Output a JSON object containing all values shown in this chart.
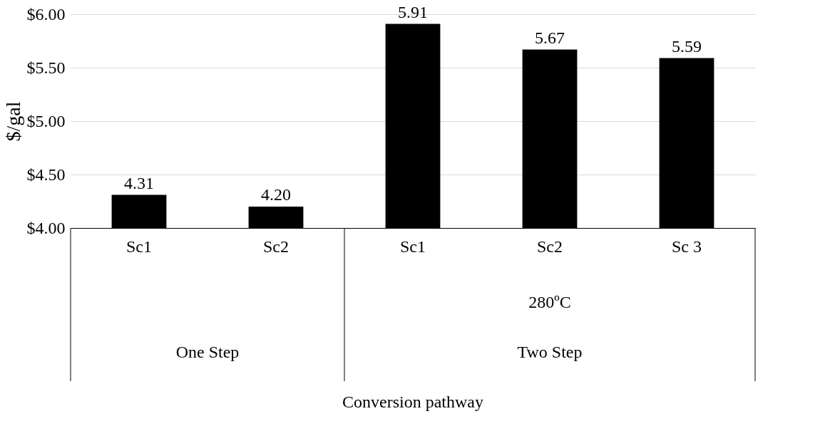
{
  "chart_data": {
    "type": "bar",
    "ylabel": "$/gal",
    "categories": [
      "Sc1",
      "Sc2",
      "Sc1",
      "Sc2",
      "Sc 3"
    ],
    "values": [
      4.31,
      4.2,
      5.91,
      5.67,
      5.59
    ],
    "value_labels": [
      "4.31",
      "4.20",
      "5.91",
      "5.67",
      "5.59"
    ],
    "color": "#000000",
    "ylim": [
      4,
      6
    ],
    "yticks": [
      {
        "value": 4,
        "label": "$4.00"
      },
      {
        "value": 4.5,
        "label": "$4.50"
      },
      {
        "value": 5,
        "label": "$5.00"
      },
      {
        "value": 5.5,
        "label": "$5.50"
      },
      {
        "value": 6,
        "label": "$6.00"
      }
    ],
    "grid": "y",
    "annotations": [
      "280ºC",
      "One Step",
      "Two Step",
      "Conversion pathway"
    ]
  }
}
